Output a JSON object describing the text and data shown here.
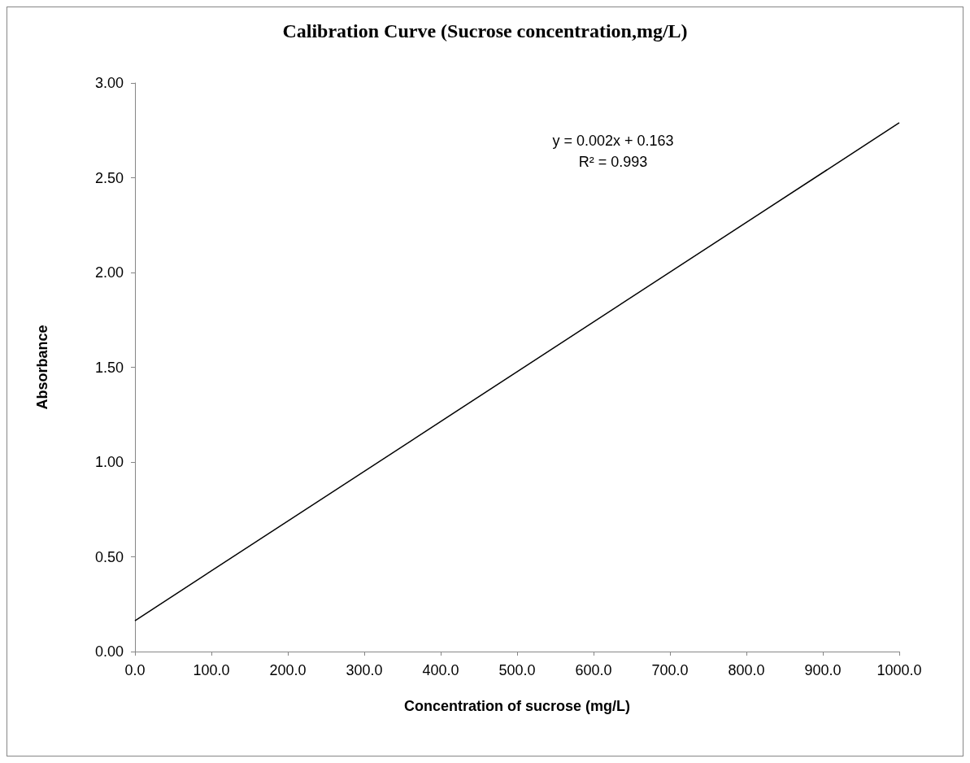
{
  "chart_data": {
    "type": "line",
    "title": "Calibration Curve (Sucrose concentration,mg/L)",
    "xlabel": "Concentration of sucrose (mg/L)",
    "ylabel": "Absorbance",
    "x": [
      0,
      1000
    ],
    "series": [
      {
        "color": "#000000",
        "values": [
          0.163,
          2.79
        ]
      }
    ],
    "xlim": [
      0,
      1000
    ],
    "ylim": [
      0,
      3
    ],
    "xticks": [
      {
        "value": 0,
        "label": "0.0"
      },
      {
        "value": 100,
        "label": "100.0"
      },
      {
        "value": 200,
        "label": "200.0"
      },
      {
        "value": 300,
        "label": "300.0"
      },
      {
        "value": 400,
        "label": "400.0"
      },
      {
        "value": 500,
        "label": "500.0"
      },
      {
        "value": 600,
        "label": "600.0"
      },
      {
        "value": 700,
        "label": "700.0"
      },
      {
        "value": 800,
        "label": "800.0"
      },
      {
        "value": 900,
        "label": "900.0"
      },
      {
        "value": 1000,
        "label": "1000.0"
      }
    ],
    "yticks": [
      {
        "value": 0,
        "label": "0.00"
      },
      {
        "value": 0.5,
        "label": "0.50"
      },
      {
        "value": 1,
        "label": "1.00"
      },
      {
        "value": 1.5,
        "label": "1.50"
      },
      {
        "value": 2,
        "label": "2.00"
      },
      {
        "value": 2.5,
        "label": "2.50"
      },
      {
        "value": 3,
        "label": "3.00"
      }
    ],
    "annotations": [
      "y = 0.002x + 0.163",
      "R² = 0.993"
    ],
    "grid": false,
    "marker": "none",
    "line_style": "solid"
  }
}
